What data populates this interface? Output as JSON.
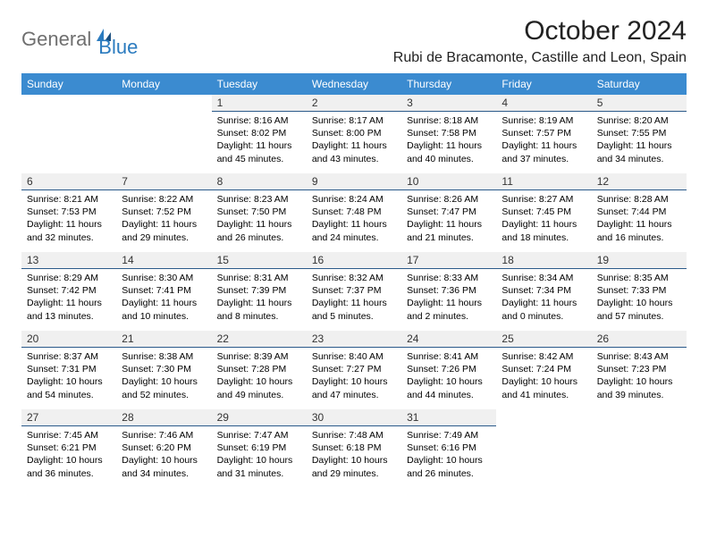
{
  "logo": {
    "general": "General",
    "blue": "Blue"
  },
  "title": "October 2024",
  "subtitle": "Rubi de Bracamonte, Castille and Leon, Spain",
  "headers": [
    "Sunday",
    "Monday",
    "Tuesday",
    "Wednesday",
    "Thursday",
    "Friday",
    "Saturday"
  ],
  "colors": {
    "header_bg": "#3b8bd0",
    "header_text": "#ffffff",
    "daynum_bg": "#f0f0f0",
    "daynum_border": "#2b5a8a",
    "logo_gray": "#6f6f6f",
    "logo_blue": "#2b7bbf"
  },
  "weeks": [
    [
      null,
      null,
      {
        "n": "1",
        "sr": "Sunrise: 8:16 AM",
        "ss": "Sunset: 8:02 PM",
        "dl": "Daylight: 11 hours and 45 minutes."
      },
      {
        "n": "2",
        "sr": "Sunrise: 8:17 AM",
        "ss": "Sunset: 8:00 PM",
        "dl": "Daylight: 11 hours and 43 minutes."
      },
      {
        "n": "3",
        "sr": "Sunrise: 8:18 AM",
        "ss": "Sunset: 7:58 PM",
        "dl": "Daylight: 11 hours and 40 minutes."
      },
      {
        "n": "4",
        "sr": "Sunrise: 8:19 AM",
        "ss": "Sunset: 7:57 PM",
        "dl": "Daylight: 11 hours and 37 minutes."
      },
      {
        "n": "5",
        "sr": "Sunrise: 8:20 AM",
        "ss": "Sunset: 7:55 PM",
        "dl": "Daylight: 11 hours and 34 minutes."
      }
    ],
    [
      {
        "n": "6",
        "sr": "Sunrise: 8:21 AM",
        "ss": "Sunset: 7:53 PM",
        "dl": "Daylight: 11 hours and 32 minutes."
      },
      {
        "n": "7",
        "sr": "Sunrise: 8:22 AM",
        "ss": "Sunset: 7:52 PM",
        "dl": "Daylight: 11 hours and 29 minutes."
      },
      {
        "n": "8",
        "sr": "Sunrise: 8:23 AM",
        "ss": "Sunset: 7:50 PM",
        "dl": "Daylight: 11 hours and 26 minutes."
      },
      {
        "n": "9",
        "sr": "Sunrise: 8:24 AM",
        "ss": "Sunset: 7:48 PM",
        "dl": "Daylight: 11 hours and 24 minutes."
      },
      {
        "n": "10",
        "sr": "Sunrise: 8:26 AM",
        "ss": "Sunset: 7:47 PM",
        "dl": "Daylight: 11 hours and 21 minutes."
      },
      {
        "n": "11",
        "sr": "Sunrise: 8:27 AM",
        "ss": "Sunset: 7:45 PM",
        "dl": "Daylight: 11 hours and 18 minutes."
      },
      {
        "n": "12",
        "sr": "Sunrise: 8:28 AM",
        "ss": "Sunset: 7:44 PM",
        "dl": "Daylight: 11 hours and 16 minutes."
      }
    ],
    [
      {
        "n": "13",
        "sr": "Sunrise: 8:29 AM",
        "ss": "Sunset: 7:42 PM",
        "dl": "Daylight: 11 hours and 13 minutes."
      },
      {
        "n": "14",
        "sr": "Sunrise: 8:30 AM",
        "ss": "Sunset: 7:41 PM",
        "dl": "Daylight: 11 hours and 10 minutes."
      },
      {
        "n": "15",
        "sr": "Sunrise: 8:31 AM",
        "ss": "Sunset: 7:39 PM",
        "dl": "Daylight: 11 hours and 8 minutes."
      },
      {
        "n": "16",
        "sr": "Sunrise: 8:32 AM",
        "ss": "Sunset: 7:37 PM",
        "dl": "Daylight: 11 hours and 5 minutes."
      },
      {
        "n": "17",
        "sr": "Sunrise: 8:33 AM",
        "ss": "Sunset: 7:36 PM",
        "dl": "Daylight: 11 hours and 2 minutes."
      },
      {
        "n": "18",
        "sr": "Sunrise: 8:34 AM",
        "ss": "Sunset: 7:34 PM",
        "dl": "Daylight: 11 hours and 0 minutes."
      },
      {
        "n": "19",
        "sr": "Sunrise: 8:35 AM",
        "ss": "Sunset: 7:33 PM",
        "dl": "Daylight: 10 hours and 57 minutes."
      }
    ],
    [
      {
        "n": "20",
        "sr": "Sunrise: 8:37 AM",
        "ss": "Sunset: 7:31 PM",
        "dl": "Daylight: 10 hours and 54 minutes."
      },
      {
        "n": "21",
        "sr": "Sunrise: 8:38 AM",
        "ss": "Sunset: 7:30 PM",
        "dl": "Daylight: 10 hours and 52 minutes."
      },
      {
        "n": "22",
        "sr": "Sunrise: 8:39 AM",
        "ss": "Sunset: 7:28 PM",
        "dl": "Daylight: 10 hours and 49 minutes."
      },
      {
        "n": "23",
        "sr": "Sunrise: 8:40 AM",
        "ss": "Sunset: 7:27 PM",
        "dl": "Daylight: 10 hours and 47 minutes."
      },
      {
        "n": "24",
        "sr": "Sunrise: 8:41 AM",
        "ss": "Sunset: 7:26 PM",
        "dl": "Daylight: 10 hours and 44 minutes."
      },
      {
        "n": "25",
        "sr": "Sunrise: 8:42 AM",
        "ss": "Sunset: 7:24 PM",
        "dl": "Daylight: 10 hours and 41 minutes."
      },
      {
        "n": "26",
        "sr": "Sunrise: 8:43 AM",
        "ss": "Sunset: 7:23 PM",
        "dl": "Daylight: 10 hours and 39 minutes."
      }
    ],
    [
      {
        "n": "27",
        "sr": "Sunrise: 7:45 AM",
        "ss": "Sunset: 6:21 PM",
        "dl": "Daylight: 10 hours and 36 minutes."
      },
      {
        "n": "28",
        "sr": "Sunrise: 7:46 AM",
        "ss": "Sunset: 6:20 PM",
        "dl": "Daylight: 10 hours and 34 minutes."
      },
      {
        "n": "29",
        "sr": "Sunrise: 7:47 AM",
        "ss": "Sunset: 6:19 PM",
        "dl": "Daylight: 10 hours and 31 minutes."
      },
      {
        "n": "30",
        "sr": "Sunrise: 7:48 AM",
        "ss": "Sunset: 6:18 PM",
        "dl": "Daylight: 10 hours and 29 minutes."
      },
      {
        "n": "31",
        "sr": "Sunrise: 7:49 AM",
        "ss": "Sunset: 6:16 PM",
        "dl": "Daylight: 10 hours and 26 minutes."
      },
      null,
      null
    ]
  ]
}
